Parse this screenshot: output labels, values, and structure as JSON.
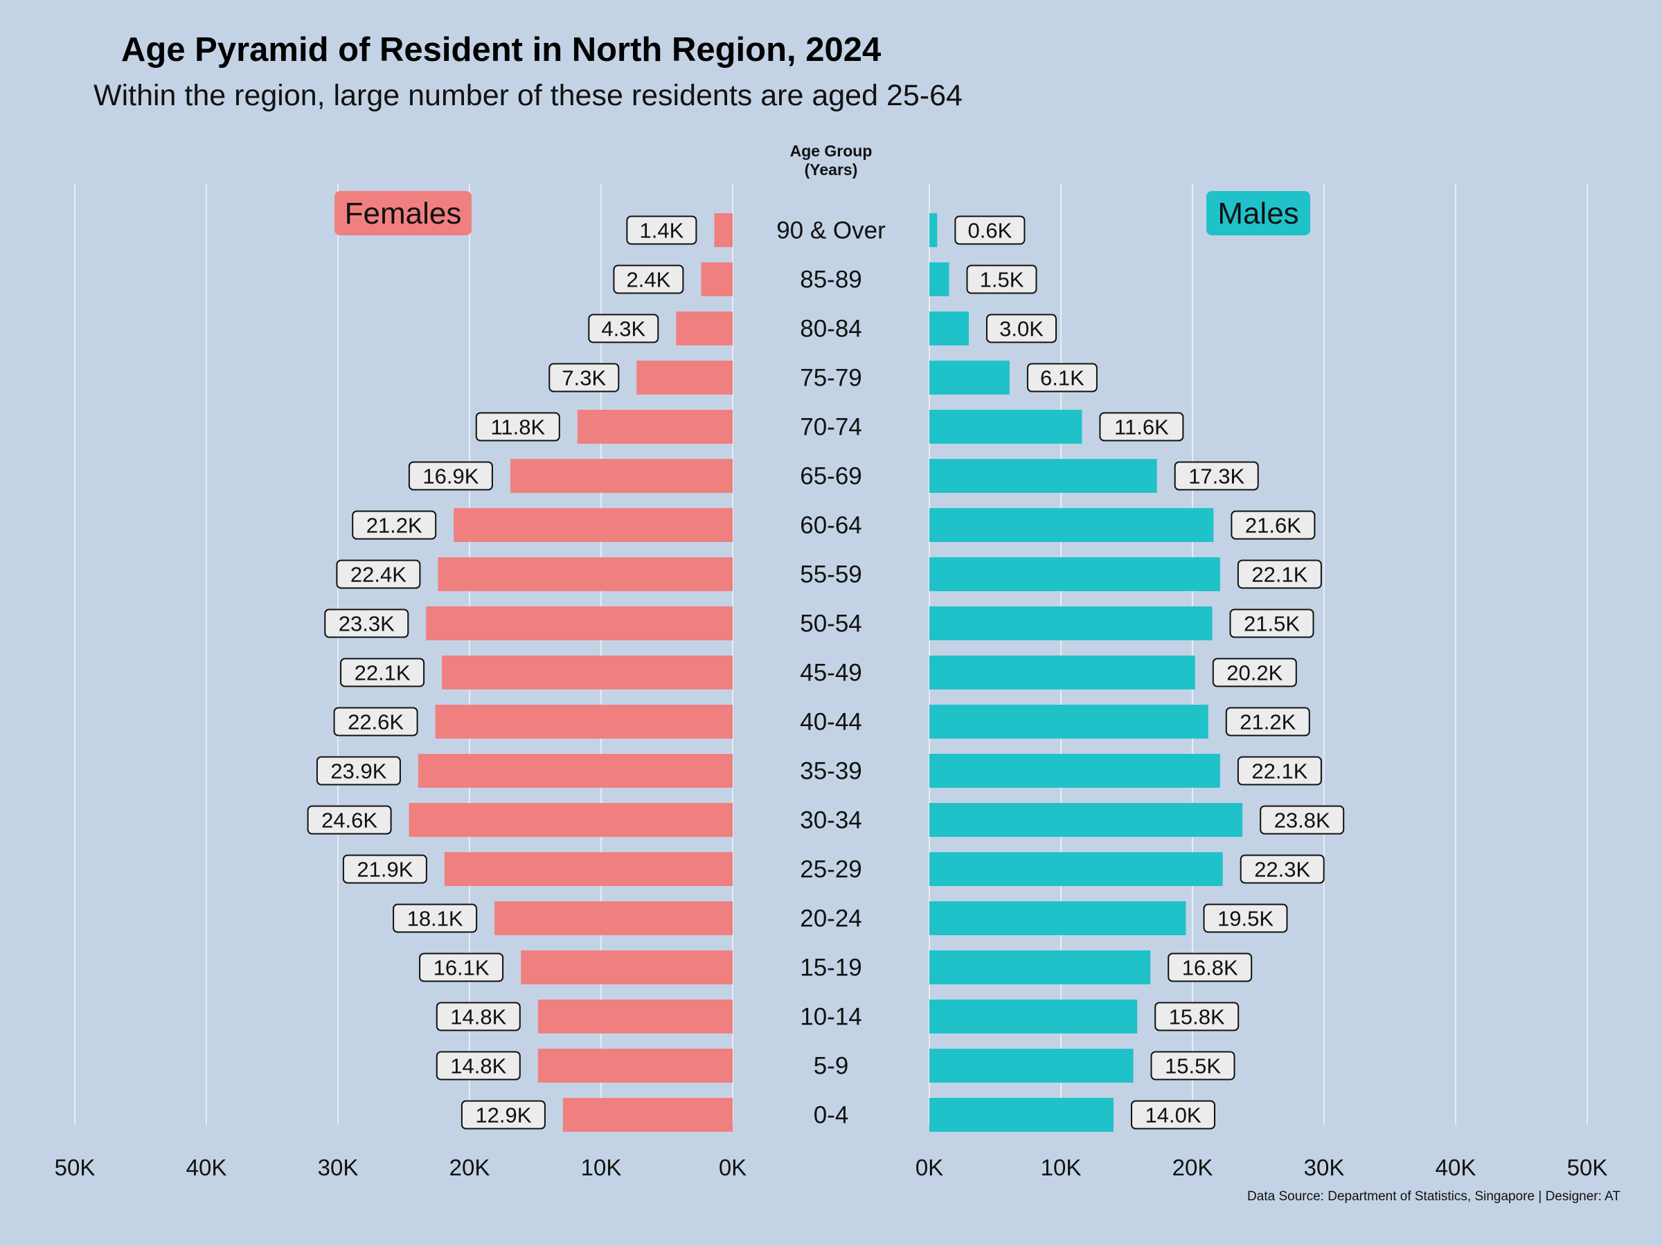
{
  "chart_data": {
    "type": "bar",
    "title": "Age Pyramid of Resident in North Region, 2024",
    "subtitle": "Within the region, large number of these residents are aged 25-64",
    "center_axis_title": [
      "Age Group",
      "(Years)"
    ],
    "source": "Data Source: Department of Statistics, Singapore | Designer: AT",
    "categories": [
      "90 & Over",
      "85-89",
      "80-84",
      "75-79",
      "70-74",
      "65-69",
      "60-64",
      "55-59",
      "50-54",
      "45-49",
      "40-44",
      "35-39",
      "30-34",
      "25-29",
      "20-24",
      "15-19",
      "10-14",
      "5-9",
      "0-4"
    ],
    "series": [
      {
        "name": "Females",
        "color": "#f08080",
        "values": [
          1400,
          2400,
          4300,
          7300,
          11800,
          16900,
          21200,
          22400,
          23300,
          22100,
          22600,
          23900,
          24600,
          21900,
          18100,
          16100,
          14800,
          14800,
          12900
        ],
        "labels": [
          "1.4K",
          "2.4K",
          "4.3K",
          "7.3K",
          "11.8K",
          "16.9K",
          "21.2K",
          "22.4K",
          "23.3K",
          "22.1K",
          "22.6K",
          "23.9K",
          "24.6K",
          "21.9K",
          "18.1K",
          "16.1K",
          "14.8K",
          "14.8K",
          "12.9K"
        ]
      },
      {
        "name": "Males",
        "color": "#20c2c9",
        "values": [
          600,
          1500,
          3000,
          6100,
          11600,
          17300,
          21600,
          22100,
          21500,
          20200,
          21200,
          22100,
          23800,
          22300,
          19500,
          16800,
          15800,
          15500,
          14000
        ],
        "labels": [
          "0.6K",
          "1.5K",
          "3.0K",
          "6.1K",
          "11.6K",
          "17.3K",
          "21.6K",
          "22.1K",
          "21.5K",
          "20.2K",
          "21.2K",
          "22.1K",
          "23.8K",
          "22.3K",
          "19.5K",
          "16.8K",
          "15.8K",
          "15.5K",
          "14.0K"
        ]
      }
    ],
    "xlim": [
      0,
      50000
    ],
    "x_ticks": [
      "0K",
      "10K",
      "20K",
      "30K",
      "40K",
      "50K"
    ],
    "grid": true,
    "colors": {
      "background": "#c3d3e5",
      "gridline": "#e6edf5",
      "label_box": "#ececec"
    }
  }
}
